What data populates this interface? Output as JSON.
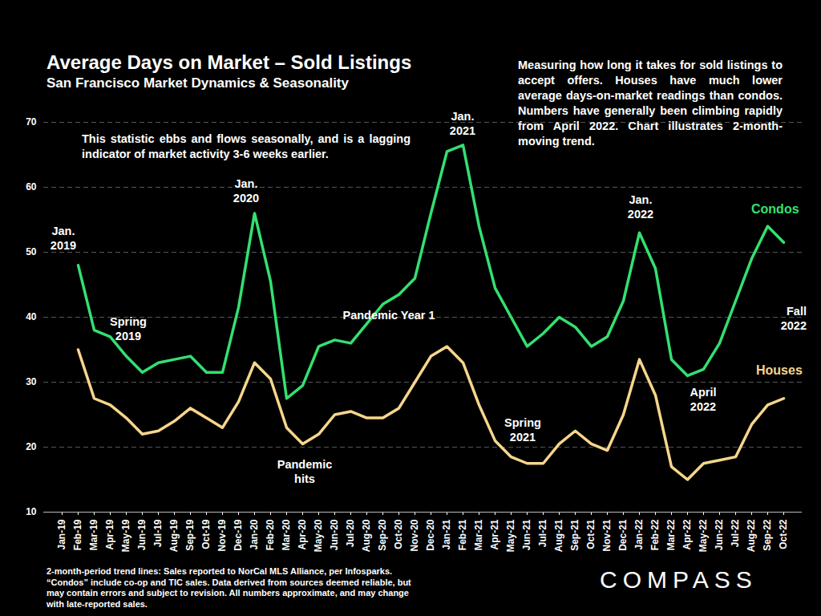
{
  "chart_data": {
    "type": "line",
    "title": "Average Days on Market – Sold Listings",
    "subtitle": "San Francisco Market Dynamics & Seasonality",
    "description": "Measuring how long it takes for sold listings to accept offers. Houses have much lower average days-on-market readings than condos. Numbers have generally been climbing rapidly from April 2022. Chart illustrates 2-month-moving trend.",
    "note": "This statistic ebbs and flows seasonally, and is a lagging indicator of market activity 3-6 weeks earlier.",
    "caption": "2-month-period trend lines: Sales reported to NorCal MLS Alliance, per Infosparks. “Condos” include co-op and TIC sales. Data derived from sources deemed reliable, but may contain errors and subject to revision. All numbers approximate, and may change with late-reported sales.",
    "logo": "COMPASS",
    "categories": [
      "Jan-19",
      "Feb-19",
      "Mar-19",
      "Apr-19",
      "May-19",
      "Jun-19",
      "Jul-19",
      "Aug-19",
      "Sep-19",
      "Oct-19",
      "Nov-19",
      "Dec-19",
      "Jan-20",
      "Feb-20",
      "Mar-20",
      "Apr-20",
      "May-20",
      "Jun-20",
      "Jul-20",
      "Aug-20",
      "Sep-20",
      "Oct-20",
      "Nov-20",
      "Dec-20",
      "Jan-21",
      "Feb-21",
      "Mar-21",
      "Apr-21",
      "May-21",
      "Jun-21",
      "Jul-21",
      "Aug-21",
      "Sep-21",
      "Oct-21",
      "Nov-21",
      "Dec-21",
      "Jan-22",
      "Feb-22",
      "Mar-22",
      "Apr-22",
      "May-22",
      "Jun-22",
      "Jul-22",
      "Aug-22",
      "Sep-22",
      "Oct-22"
    ],
    "series": [
      {
        "name": "Condos",
        "color": "#33e070",
        "values": [
          null,
          48,
          38,
          37,
          34,
          31.5,
          33,
          33.5,
          34,
          31.5,
          31.5,
          41.5,
          56,
          45.5,
          27.5,
          29.5,
          35.5,
          36.5,
          36,
          39,
          42,
          43.5,
          46,
          56,
          65.5,
          66.5,
          54,
          44.5,
          40,
          35.5,
          37.5,
          40,
          38.5,
          35.5,
          37,
          42.5,
          53,
          47.5,
          33.5,
          31,
          32,
          36,
          42.5,
          49,
          54,
          51.5
        ]
      },
      {
        "name": "Houses",
        "color": "#f6d68c",
        "values": [
          null,
          35,
          27.5,
          26.5,
          24.5,
          22,
          22.5,
          24,
          26,
          24.5,
          23,
          27,
          33,
          30.5,
          23,
          20.5,
          22,
          25,
          25.5,
          24.5,
          24.5,
          26,
          30,
          34,
          35.5,
          33,
          26.5,
          21,
          18.5,
          17.5,
          17.5,
          20.5,
          22.5,
          20.5,
          19.5,
          25,
          33.5,
          28,
          17,
          15,
          17.5,
          18,
          18.5,
          23.5,
          26.5,
          27.5
        ]
      }
    ],
    "ylim": [
      10,
      70
    ],
    "yticks": [
      10,
      20,
      30,
      40,
      50,
      60,
      70
    ],
    "grid": true,
    "annotations": [
      {
        "text": "Jan.\n2019"
      },
      {
        "text": "Spring\n2019"
      },
      {
        "text": "Jan.\n2020"
      },
      {
        "text": "Pandemic\nhits"
      },
      {
        "text": "Pandemic Year 1"
      },
      {
        "text": "Jan.\n2021"
      },
      {
        "text": "Spring\n2021"
      },
      {
        "text": "Jan.\n2022"
      },
      {
        "text": "April\n2022"
      },
      {
        "text": "Fall\n2022"
      }
    ]
  }
}
